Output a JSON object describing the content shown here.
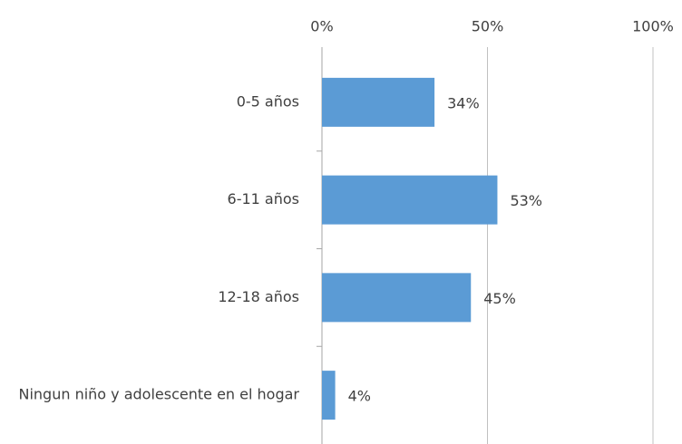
{
  "chart_data": {
    "type": "bar",
    "orientation": "horizontal",
    "categories": [
      "0-5 años",
      "6-11 años",
      "12-18 años",
      "Ningun niño y adolescente en el hogar"
    ],
    "values": [
      34,
      53,
      45,
      4
    ],
    "value_labels": [
      "34%",
      "53%",
      "45%",
      "4%"
    ],
    "color": "#5b9bd5",
    "xlim": [
      0,
      100
    ],
    "xticks": [
      {
        "value": 0,
        "label": "0%"
      },
      {
        "value": 50,
        "label": "50%"
      },
      {
        "value": 100,
        "label": "100%"
      }
    ],
    "grid": true
  }
}
